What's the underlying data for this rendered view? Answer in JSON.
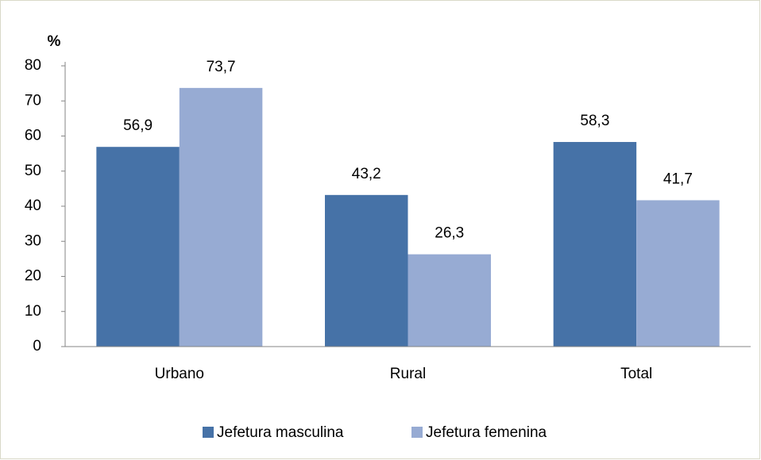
{
  "chart_data": {
    "type": "bar",
    "y_label": "%",
    "categories": [
      "Urbano",
      "Rural",
      "Total"
    ],
    "series": [
      {
        "name": "Jefetura masculina",
        "color": "#4672a7",
        "values": [
          56.9,
          43.2,
          58.3
        ],
        "value_labels": [
          "56,9",
          "43,2",
          "58,3"
        ]
      },
      {
        "name": "Jefetura femenina",
        "color": "#97abd3",
        "values": [
          73.7,
          26.3,
          41.7
        ],
        "value_labels": [
          "73,7",
          "26,3",
          "41,7"
        ]
      }
    ],
    "ylim": [
      0,
      80
    ],
    "yticks": [
      0,
      10,
      20,
      30,
      40,
      50,
      60,
      70,
      80
    ],
    "grid": false,
    "legend": "bottom"
  }
}
